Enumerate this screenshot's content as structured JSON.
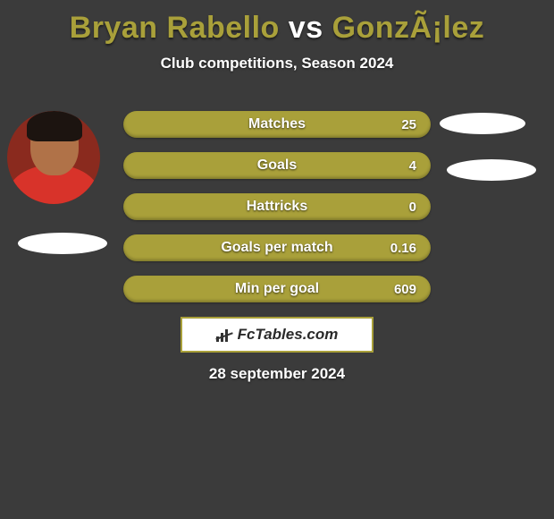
{
  "title": {
    "player1": "Bryan Rabello",
    "vs": "vs",
    "player2": "GonzÃ¡lez",
    "player1_color": "#a9a03a",
    "vs_color": "#ffffff",
    "player2_color": "#a9a03a"
  },
  "subtitle": "Club competitions, Season 2024",
  "bars": {
    "bar_color": "#a9a03a",
    "text_color": "#ffffff",
    "height": 30,
    "gap": 16,
    "items": [
      {
        "label": "Matches",
        "value": "25"
      },
      {
        "label": "Goals",
        "value": "4"
      },
      {
        "label": "Hattricks",
        "value": "0"
      },
      {
        "label": "Goals per match",
        "value": "0.16"
      },
      {
        "label": "Min per goal",
        "value": "609"
      }
    ]
  },
  "brand": {
    "text": "FcTables.com",
    "border_color": "#a9a03a",
    "background_color": "#ffffff"
  },
  "date": "28 september 2024",
  "colors": {
    "background": "#3b3b3b",
    "ellipse": "#ffffff"
  }
}
